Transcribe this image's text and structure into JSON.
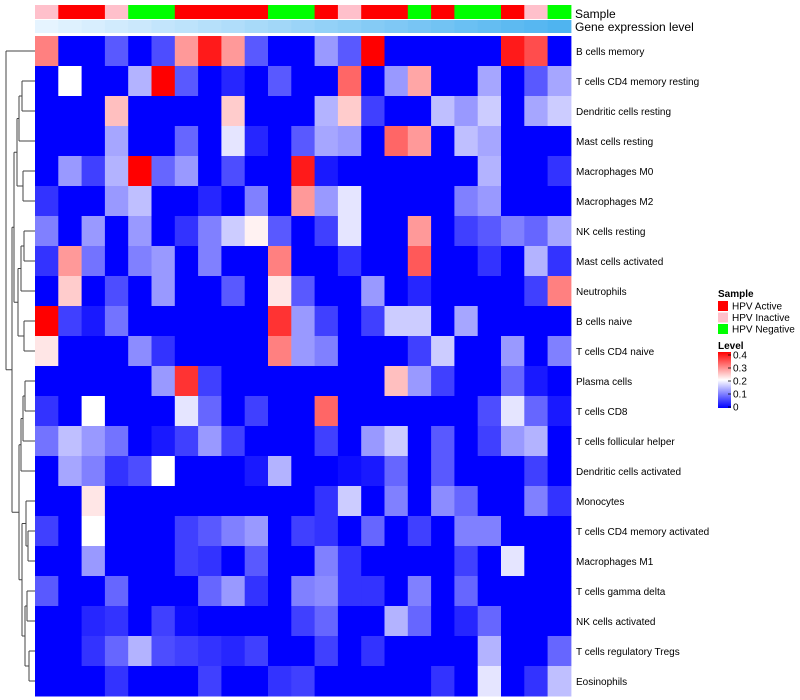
{
  "chart_data": {
    "type": "heatmap",
    "annotation_labels": [
      "Sample",
      "Gene expression level"
    ],
    "rows": [
      "B cells memory",
      "T cells CD4 memory resting",
      "Dendritic cells resting",
      "Mast cells resting",
      "Macrophages M0",
      "Macrophages M2",
      "NK cells resting",
      "Mast cells activated",
      "Neutrophils",
      "B cells naive",
      "T cells CD4 naive",
      "Plasma cells",
      "T cells CD8",
      "T cells follicular helper",
      "Dendritic cells activated",
      "Monocytes",
      "T cells CD4 memory activated",
      "Macrophages M1",
      "T cells gamma delta",
      "NK cells activated",
      "T cells regulatory  Tregs",
      "Eosinophils"
    ],
    "sample_groups": [
      "HPV Inactive",
      "HPV Active",
      "HPV Active",
      "HPV Inactive",
      "HPV Negative",
      "HPV Negative",
      "HPV Active",
      "HPV Active",
      "HPV Active",
      "HPV Active",
      "HPV Negative",
      "HPV Negative",
      "HPV Active",
      "HPV Inactive",
      "HPV Active",
      "HPV Active",
      "HPV Negative",
      "HPV Active",
      "HPV Negative",
      "HPV Negative",
      "HPV Active",
      "HPV Inactive",
      "HPV Negative"
    ],
    "gene_expression_level": [
      0,
      0.05,
      0.09,
      0.14,
      0.18,
      0.23,
      0.27,
      0.32,
      0.36,
      0.41,
      0.45,
      0.5,
      0.55,
      0.59,
      0.64,
      0.68,
      0.73,
      0.77,
      0.82,
      0.86,
      0.91,
      0.95,
      1.0
    ],
    "values": [
      [
        0.3,
        0.0,
        0.0,
        0.07,
        0.0,
        0.06,
        0.28,
        0.38,
        0.28,
        0.07,
        0.0,
        0.0,
        0.12,
        0.07,
        0.4,
        0.0,
        0.0,
        0.0,
        0.0,
        0.0,
        0.38,
        0.34,
        0.0
      ],
      [
        0.0,
        0.2,
        0.0,
        0.0,
        0.14,
        0.4,
        0.07,
        0.0,
        0.03,
        0.0,
        0.07,
        0.0,
        0.0,
        0.32,
        0.0,
        0.12,
        0.27,
        0.0,
        0.0,
        0.13,
        0.0,
        0.07,
        0.13
      ],
      [
        0.0,
        0.0,
        0.0,
        0.25,
        0.0,
        0.0,
        0.0,
        0.0,
        0.24,
        0.0,
        0.0,
        0.0,
        0.14,
        0.24,
        0.05,
        0.0,
        0.0,
        0.15,
        0.12,
        0.16,
        0.0,
        0.13,
        0.16
      ],
      [
        0.0,
        0.0,
        0.0,
        0.13,
        0.0,
        0.0,
        0.08,
        0.0,
        0.18,
        0.03,
        0.0,
        0.07,
        0.13,
        0.12,
        0.0,
        0.32,
        0.28,
        0.0,
        0.15,
        0.13,
        0.0,
        0.0,
        0.0
      ],
      [
        0.0,
        0.12,
        0.05,
        0.14,
        0.4,
        0.08,
        0.12,
        0.0,
        0.06,
        0.0,
        0.0,
        0.38,
        0.02,
        0.0,
        0.0,
        0.0,
        0.0,
        0.0,
        0.0,
        0.14,
        0.0,
        0.0,
        0.04
      ],
      [
        0.04,
        0.0,
        0.0,
        0.12,
        0.15,
        0.0,
        0.0,
        0.03,
        0.0,
        0.1,
        0.0,
        0.28,
        0.12,
        0.18,
        0.0,
        0.0,
        0.0,
        0.0,
        0.1,
        0.12,
        0.0,
        0.0,
        0.0
      ],
      [
        0.1,
        0.0,
        0.12,
        0.0,
        0.12,
        0.0,
        0.04,
        0.1,
        0.16,
        0.21,
        0.07,
        0.0,
        0.05,
        0.18,
        0.0,
        0.0,
        0.28,
        0.0,
        0.05,
        0.07,
        0.1,
        0.08,
        0.13
      ],
      [
        0.04,
        0.28,
        0.09,
        0.0,
        0.1,
        0.12,
        0.0,
        0.1,
        0.0,
        0.0,
        0.3,
        0.0,
        0.0,
        0.04,
        0.0,
        0.0,
        0.33,
        0.0,
        0.0,
        0.04,
        0.0,
        0.14,
        0.04
      ],
      [
        0.0,
        0.24,
        0.0,
        0.06,
        0.0,
        0.12,
        0.0,
        0.0,
        0.07,
        0.0,
        0.22,
        0.07,
        0.0,
        0.0,
        0.12,
        0.0,
        0.03,
        0.0,
        0.0,
        0.0,
        0.0,
        0.05,
        0.3
      ],
      [
        0.4,
        0.05,
        0.02,
        0.09,
        0.0,
        0.0,
        0.0,
        0.0,
        0.0,
        0.0,
        0.36,
        0.12,
        0.05,
        0.0,
        0.05,
        0.16,
        0.16,
        0.0,
        0.13,
        0.0,
        0.0,
        0.0,
        0.0
      ],
      [
        0.22,
        0.0,
        0.0,
        0.0,
        0.11,
        0.04,
        0.0,
        0.0,
        0.0,
        0.0,
        0.3,
        0.12,
        0.1,
        0.0,
        0.0,
        0.0,
        0.05,
        0.16,
        0.0,
        0.0,
        0.12,
        0.0,
        0.1
      ],
      [
        0.0,
        0.0,
        0.0,
        0.0,
        0.0,
        0.12,
        0.36,
        0.05,
        0.0,
        0.0,
        0.0,
        0.0,
        0.0,
        0.0,
        0.0,
        0.25,
        0.12,
        0.05,
        0.0,
        0.0,
        0.08,
        0.02,
        0.0
      ],
      [
        0.04,
        0.0,
        0.2,
        0.0,
        0.0,
        0.0,
        0.18,
        0.08,
        0.0,
        0.05,
        0.0,
        0.0,
        0.32,
        0.0,
        0.0,
        0.0,
        0.0,
        0.0,
        0.0,
        0.06,
        0.18,
        0.08,
        0.02
      ],
      [
        0.09,
        0.15,
        0.12,
        0.09,
        0.0,
        0.02,
        0.05,
        0.12,
        0.05,
        0.0,
        0.0,
        0.0,
        0.05,
        0.0,
        0.12,
        0.16,
        0.0,
        0.07,
        0.0,
        0.05,
        0.12,
        0.14,
        0.0
      ],
      [
        0.0,
        0.13,
        0.1,
        0.04,
        0.06,
        0.2,
        0.0,
        0.0,
        0.0,
        0.02,
        0.14,
        0.0,
        0.0,
        0.01,
        0.02,
        0.08,
        0.0,
        0.07,
        0.0,
        0.0,
        0.0,
        0.05,
        0.0
      ],
      [
        0.0,
        0.0,
        0.22,
        0.0,
        0.0,
        0.0,
        0.0,
        0.0,
        0.0,
        0.0,
        0.0,
        0.0,
        0.04,
        0.16,
        0.0,
        0.1,
        0.0,
        0.11,
        0.08,
        0.0,
        0.0,
        0.1,
        0.04
      ],
      [
        0.05,
        0.0,
        0.2,
        0.0,
        0.0,
        0.0,
        0.05,
        0.07,
        0.1,
        0.12,
        0.0,
        0.05,
        0.04,
        0.0,
        0.08,
        0.0,
        0.05,
        0.0,
        0.1,
        0.1,
        0.0,
        0.0,
        0.0
      ],
      [
        0.0,
        0.0,
        0.12,
        0.0,
        0.0,
        0.0,
        0.05,
        0.04,
        0.0,
        0.07,
        0.0,
        0.0,
        0.1,
        0.04,
        0.0,
        0.0,
        0.0,
        0.0,
        0.05,
        0.0,
        0.18,
        0.0,
        0.0
      ],
      [
        0.07,
        0.0,
        0.0,
        0.08,
        0.0,
        0.0,
        0.0,
        0.08,
        0.12,
        0.04,
        0.0,
        0.1,
        0.11,
        0.04,
        0.04,
        0.0,
        0.1,
        0.0,
        0.08,
        0.0,
        0.0,
        0.0,
        0.0
      ],
      [
        0.0,
        0.0,
        0.03,
        0.04,
        0.0,
        0.05,
        0.01,
        0.0,
        0.0,
        0.0,
        0.0,
        0.05,
        0.08,
        0.0,
        0.0,
        0.14,
        0.08,
        0.0,
        0.03,
        0.08,
        0.0,
        0.0,
        0.0
      ],
      [
        0.0,
        0.0,
        0.04,
        0.08,
        0.14,
        0.06,
        0.05,
        0.04,
        0.03,
        0.05,
        0.0,
        0.0,
        0.05,
        0.0,
        0.04,
        0.0,
        0.0,
        0.0,
        0.0,
        0.14,
        0.0,
        0.0,
        0.08
      ],
      [
        0.0,
        0.0,
        0.0,
        0.04,
        0.0,
        0.0,
        0.0,
        0.05,
        0.0,
        0.0,
        0.04,
        0.05,
        0.0,
        0.0,
        0.0,
        0.0,
        0.0,
        0.04,
        0.0,
        0.18,
        0.0,
        0.04,
        0.15
      ]
    ],
    "legend": {
      "sample_title": "Sample",
      "sample_entries": [
        {
          "label": "HPV Active",
          "color": "#ff0000"
        },
        {
          "label": "HPV Inactive",
          "color": "#ffc0cb"
        },
        {
          "label": "HPV Negative",
          "color": "#00ff00"
        }
      ],
      "level_title": "Level",
      "level_ticks": [
        "0.4",
        "0.3",
        "0.2",
        "0.1",
        "0"
      ],
      "level_range": [
        0,
        0.4
      ]
    },
    "colors": {
      "low": "#0000ff",
      "mid": "#ffffff",
      "high": "#ff0000",
      "gene_low": "#e6f4ff",
      "gene_high": "#4fb4f0"
    }
  }
}
